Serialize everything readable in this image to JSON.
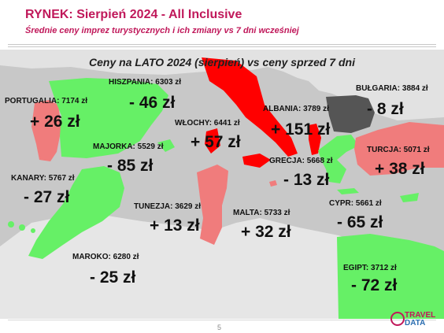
{
  "header": {
    "title": "RYNEK: Sierpień 2024 - All Inclusive",
    "subtitle": "Średnie ceny imprez turystycznych i ich zmiany vs 7 dni wcześniej"
  },
  "map": {
    "heading": "Ceny na LATO 2024 (sierpień) vs ceny sprzed 7 dni",
    "colors": {
      "increase": "#f07c7c",
      "decrease": "#66f066",
      "strong_increase": "#ff0000",
      "small_decrease": "#555555",
      "background": "#c8c8c8"
    },
    "destinations": [
      {
        "label": "PORTUGALIA:  7174 zł",
        "delta": "+ 26 zł"
      },
      {
        "label": "HISZPANIA: 6303 zł",
        "delta": "- 46 zł"
      },
      {
        "label": "WŁOCHY: 6441 zł",
        "delta": "+ 57 zł"
      },
      {
        "label": "ALBANIA: 3789 zł",
        "delta": "+ 151 zł"
      },
      {
        "label": "BUŁGARIA: 3884 zł",
        "delta": "- 8 zł"
      },
      {
        "label": "MAJORKA: 5529 zł",
        "delta": "- 85 zł"
      },
      {
        "label": "TURCJA: 5071 zł",
        "delta": "+ 38 zł"
      },
      {
        "label": "GRECJA: 5668 zł",
        "delta": "- 13 zł"
      },
      {
        "label": "KANARY: 5767 zł",
        "delta": "- 27 zł"
      },
      {
        "label": "TUNEZJA: 3629 zł",
        "delta": "+ 13 zł"
      },
      {
        "label": "MALTA: 5733 zł",
        "delta": "+ 32 zł"
      },
      {
        "label": "CYPR: 5661 zł",
        "delta": "- 65 zł"
      },
      {
        "label": "MAROKO: 6280 zł",
        "delta": "- 25 zł"
      },
      {
        "label": "EGIPT: 3712 zł",
        "delta": "- 72 zł"
      }
    ]
  },
  "footer": {
    "page_number": "5",
    "logo_top": "TRAVEL",
    "logo_bottom": "DATA"
  }
}
